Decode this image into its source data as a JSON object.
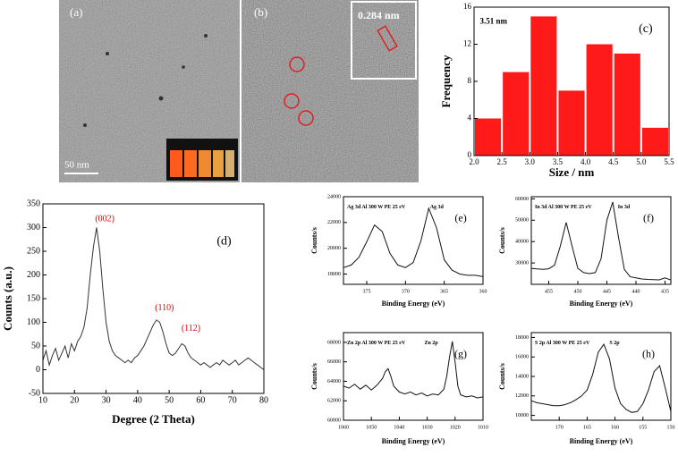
{
  "images": [
    {
      "label": "(a)",
      "scale_bar": "50 nm"
    },
    {
      "label": "(b)",
      "annotation": "0.284 nm"
    }
  ],
  "chart_data": [
    {
      "type": "histogram",
      "label": "(c)",
      "annotations": [
        "3.51 nm"
      ],
      "x_label": "Size / nm",
      "y_label": "Frequency",
      "bins": [
        2,
        2.5,
        3,
        3.5,
        4,
        4.5,
        5,
        5.5
      ],
      "values": [
        4,
        9,
        15,
        7,
        12,
        11,
        3
      ],
      "color": "#ff1a1a",
      "xlim": [
        2,
        5.5
      ],
      "ylim": [
        0,
        16
      ],
      "xticks": [
        {
          "value": 2,
          "label": "2.0"
        },
        2.5,
        {
          "value": 3,
          "label": "3.0"
        },
        3.5,
        {
          "value": 4,
          "label": "4.0"
        },
        4.5,
        {
          "value": 5,
          "label": "5.0"
        },
        5.5
      ],
      "yticks": [
        0,
        4,
        8,
        12,
        16
      ]
    },
    {
      "type": "line",
      "label": "(d)",
      "annotations": [
        "(002)",
        "(110)",
        "(112)"
      ],
      "annotation_color": "#e00000",
      "x_label": "Degree (2 Theta)",
      "y_label": "Counts (a.u.)",
      "color": "#333333",
      "x": [
        10,
        11,
        12,
        13,
        14,
        15,
        16,
        17,
        18,
        19,
        20,
        21,
        22,
        23,
        24,
        25,
        26,
        27,
        28,
        29,
        30,
        31,
        32,
        33,
        34,
        35,
        36,
        37,
        38,
        39,
        40,
        41,
        42,
        43,
        44,
        45,
        46,
        47,
        48,
        49,
        50,
        51,
        52,
        53,
        54,
        55,
        56,
        57,
        58,
        59,
        60,
        61,
        62,
        63,
        64,
        65,
        66,
        67,
        68,
        69,
        70,
        71,
        72,
        73,
        74,
        75,
        76,
        77,
        78,
        79,
        80
      ],
      "values": [
        20,
        40,
        10,
        30,
        45,
        20,
        35,
        50,
        25,
        55,
        40,
        60,
        70,
        90,
        130,
        200,
        260,
        300,
        250,
        170,
        100,
        60,
        40,
        30,
        25,
        20,
        15,
        20,
        15,
        25,
        30,
        40,
        50,
        65,
        80,
        95,
        105,
        100,
        80,
        55,
        35,
        30,
        35,
        45,
        55,
        50,
        35,
        25,
        20,
        15,
        10,
        15,
        10,
        5,
        10,
        15,
        10,
        20,
        15,
        10,
        15,
        20,
        10,
        15,
        20,
        25,
        20,
        15,
        10,
        5,
        0
      ],
      "xlim": [
        10,
        80
      ],
      "ylim": [
        -50,
        350
      ],
      "xticks": [
        10,
        20,
        30,
        40,
        50,
        60,
        70,
        80
      ],
      "yticks": [
        -50,
        0,
        50,
        100,
        150,
        200,
        250,
        300,
        350
      ]
    },
    {
      "type": "line",
      "label": "(e)",
      "title": "Ag 3d Al 300 W PE 25 eV",
      "annotations": [
        "Ag 3d"
      ],
      "x_label": "Binding Energy (eV)",
      "y_label": "Counts/s",
      "color": "#111111",
      "x": [
        378,
        377,
        376,
        375,
        374,
        373,
        372,
        371,
        370,
        369,
        368,
        367,
        366,
        365,
        364,
        363,
        362,
        361,
        360
      ],
      "values": [
        18500,
        18700,
        19300,
        20500,
        21800,
        21300,
        19600,
        18700,
        18500,
        18900,
        20600,
        23100,
        21600,
        19100,
        18300,
        18000,
        17900,
        17900,
        17800
      ],
      "xlim": [
        378,
        360
      ],
      "ylim": [
        17200,
        24000
      ],
      "xticks": [
        375,
        370,
        365,
        360
      ],
      "yticks": [
        18000,
        20000,
        22000,
        24000
      ]
    },
    {
      "type": "line",
      "label": "(f)",
      "title": "In 3d Al 300 W PE 25 eV",
      "annotations": [
        "In 3d"
      ],
      "x_label": "Binding Energy (eV)",
      "y_label": "Counts/s",
      "color": "#111111",
      "x": [
        458,
        457,
        456,
        455,
        454,
        453,
        452,
        451,
        450,
        449,
        448,
        447,
        446,
        445,
        444,
        443,
        442,
        441,
        440,
        439,
        438,
        437,
        436,
        435,
        434
      ],
      "values": [
        27500,
        27200,
        27000,
        27300,
        29000,
        38000,
        49000,
        38000,
        27500,
        25500,
        25000,
        25500,
        32000,
        50000,
        58500,
        42000,
        27000,
        23500,
        23000,
        22500,
        22300,
        22200,
        22100,
        23000,
        22000
      ],
      "xlim": [
        458,
        434
      ],
      "ylim": [
        20000,
        61000
      ],
      "xticks": [
        455,
        450,
        445,
        440,
        435
      ],
      "yticks": [
        30000,
        40000,
        50000,
        60000
      ]
    },
    {
      "type": "line",
      "label": "(g)",
      "title": "Zn 2p Al 300 W PE 25 eV",
      "annotations": [
        "Zn 2p"
      ],
      "x_label": "Binding Energy (eV)",
      "y_label": "Counts/s",
      "color": "#111111",
      "x": [
        1060,
        1058,
        1056,
        1054,
        1052,
        1050,
        1048,
        1046,
        1045,
        1044,
        1043,
        1042,
        1040,
        1038,
        1036,
        1034,
        1032,
        1030,
        1028,
        1026,
        1024,
        1023,
        1022,
        1021,
        1020,
        1019,
        1018,
        1016,
        1014,
        1012,
        1010
      ],
      "values": [
        63500,
        63300,
        63700,
        63200,
        63600,
        63100,
        63600,
        64300,
        65000,
        65300,
        64500,
        63500,
        62900,
        62700,
        62900,
        62600,
        62800,
        62500,
        62700,
        62600,
        63200,
        64500,
        66500,
        68100,
        66000,
        63500,
        62600,
        62400,
        62500,
        62300,
        62400
      ],
      "xlim": [
        1060,
        1010
      ],
      "ylim": [
        60000,
        69000
      ],
      "xticks": [
        1060,
        1050,
        1040,
        1030,
        1020,
        1010
      ],
      "yticks": [
        60000,
        62000,
        64000,
        66000,
        68000
      ]
    },
    {
      "type": "line",
      "label": "(h)",
      "title": "S 2p Al 300 W PE 25 eV",
      "annotations": [
        "S 2p"
      ],
      "x_label": "Binding Energy (eV)",
      "y_label": "Counts/s",
      "color": "#111111",
      "x": [
        175,
        174,
        173,
        172,
        171,
        170,
        169,
        168,
        167,
        166,
        165,
        164,
        163,
        162,
        161,
        160,
        159,
        158,
        157,
        156,
        155,
        154,
        153,
        152,
        151,
        150
      ],
      "values": [
        11500,
        11300,
        11200,
        11100,
        11000,
        11000,
        11100,
        11300,
        11600,
        12000,
        12600,
        14200,
        16500,
        17300,
        15800,
        12800,
        11200,
        10600,
        10300,
        10400,
        11200,
        12600,
        14500,
        15100,
        12800,
        10400
      ],
      "xlim": [
        175,
        150
      ],
      "ylim": [
        9500,
        18500
      ],
      "xticks": [
        170,
        165,
        160,
        155,
        150
      ],
      "yticks": [
        10000,
        12000,
        14000,
        16000,
        18000
      ]
    }
  ]
}
